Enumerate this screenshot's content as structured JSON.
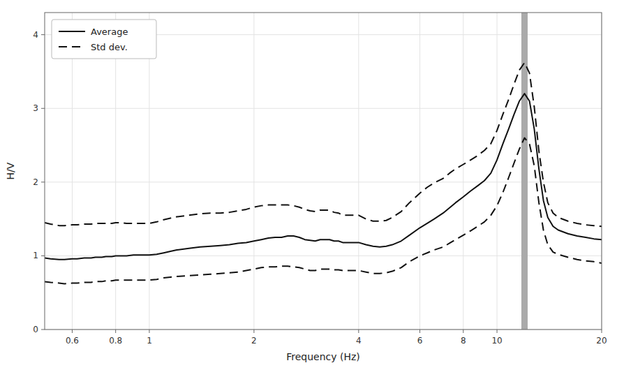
{
  "chart_data": {
    "type": "line",
    "xlabel": "Frequency (Hz)",
    "ylabel": "H/V",
    "log": "x",
    "xlim": [
      0.5,
      20
    ],
    "ylim": [
      0,
      4.3
    ],
    "xticks": [
      0.6,
      0.8,
      1,
      2,
      4,
      6,
      8,
      10,
      20
    ],
    "yticks": [
      0,
      1,
      2,
      3,
      4
    ],
    "grid": true,
    "legend": "upper left",
    "vlines": [
      {
        "x": 12.0,
        "color": "#aaaaaa"
      }
    ],
    "x": [
      0.5,
      0.52,
      0.55,
      0.57,
      0.6,
      0.62,
      0.65,
      0.68,
      0.7,
      0.73,
      0.75,
      0.78,
      0.8,
      0.83,
      0.86,
      0.9,
      0.93,
      0.96,
      1.0,
      1.05,
      1.1,
      1.15,
      1.2,
      1.3,
      1.4,
      1.5,
      1.6,
      1.7,
      1.8,
      1.9,
      2.0,
      2.1,
      2.2,
      2.3,
      2.4,
      2.5,
      2.6,
      2.7,
      2.8,
      2.9,
      3.0,
      3.1,
      3.2,
      3.3,
      3.4,
      3.5,
      3.6,
      3.7,
      3.8,
      3.9,
      4.0,
      4.2,
      4.4,
      4.6,
      4.8,
      5.0,
      5.3,
      5.6,
      6.0,
      6.3,
      6.6,
      7.0,
      7.3,
      7.6,
      8.0,
      8.4,
      8.8,
      9.2,
      9.6,
      10.0,
      10.4,
      10.8,
      11.2,
      11.6,
      12.0,
      12.4,
      12.8,
      13.2,
      13.6,
      14.0,
      14.5,
      15.0,
      16.0,
      17.0,
      18.0,
      19.0,
      20.0
    ],
    "series": [
      {
        "name": "Average",
        "color": "#111111",
        "line_style": "solid",
        "values": [
          0.97,
          0.96,
          0.95,
          0.95,
          0.96,
          0.96,
          0.97,
          0.97,
          0.98,
          0.98,
          0.99,
          0.99,
          1.0,
          1.0,
          1.0,
          1.01,
          1.01,
          1.01,
          1.01,
          1.02,
          1.04,
          1.06,
          1.08,
          1.1,
          1.12,
          1.13,
          1.14,
          1.15,
          1.17,
          1.18,
          1.2,
          1.22,
          1.24,
          1.25,
          1.25,
          1.27,
          1.27,
          1.25,
          1.22,
          1.21,
          1.2,
          1.22,
          1.22,
          1.22,
          1.2,
          1.2,
          1.18,
          1.18,
          1.18,
          1.18,
          1.18,
          1.15,
          1.13,
          1.12,
          1.13,
          1.15,
          1.2,
          1.28,
          1.38,
          1.44,
          1.5,
          1.58,
          1.65,
          1.72,
          1.8,
          1.88,
          1.95,
          2.02,
          2.12,
          2.3,
          2.52,
          2.72,
          2.92,
          3.1,
          3.2,
          3.1,
          2.72,
          2.18,
          1.75,
          1.52,
          1.4,
          1.35,
          1.3,
          1.27,
          1.25,
          1.23,
          1.22
        ]
      },
      {
        "name": "Std dev.",
        "color": "#111111",
        "line_style": "dashed",
        "values": [
          1.45,
          1.43,
          1.41,
          1.41,
          1.42,
          1.42,
          1.43,
          1.43,
          1.44,
          1.44,
          1.44,
          1.44,
          1.45,
          1.45,
          1.44,
          1.44,
          1.44,
          1.44,
          1.44,
          1.46,
          1.49,
          1.51,
          1.53,
          1.55,
          1.57,
          1.58,
          1.58,
          1.59,
          1.61,
          1.63,
          1.66,
          1.68,
          1.69,
          1.69,
          1.69,
          1.69,
          1.68,
          1.66,
          1.63,
          1.61,
          1.6,
          1.62,
          1.62,
          1.62,
          1.59,
          1.58,
          1.55,
          1.55,
          1.55,
          1.55,
          1.55,
          1.5,
          1.47,
          1.47,
          1.48,
          1.52,
          1.6,
          1.72,
          1.85,
          1.93,
          1.99,
          2.05,
          2.12,
          2.18,
          2.24,
          2.3,
          2.36,
          2.43,
          2.52,
          2.7,
          2.92,
          3.12,
          3.33,
          3.52,
          3.62,
          3.48,
          3.02,
          2.42,
          2.0,
          1.72,
          1.58,
          1.52,
          1.47,
          1.44,
          1.42,
          1.41,
          1.4
        ]
      },
      {
        "color": "#111111",
        "line_style": "dashed",
        "values": [
          0.65,
          0.64,
          0.63,
          0.62,
          0.63,
          0.63,
          0.64,
          0.64,
          0.65,
          0.65,
          0.66,
          0.66,
          0.67,
          0.67,
          0.67,
          0.67,
          0.67,
          0.67,
          0.67,
          0.68,
          0.7,
          0.71,
          0.72,
          0.73,
          0.74,
          0.75,
          0.76,
          0.77,
          0.78,
          0.8,
          0.82,
          0.84,
          0.85,
          0.85,
          0.86,
          0.86,
          0.85,
          0.84,
          0.82,
          0.8,
          0.8,
          0.82,
          0.82,
          0.82,
          0.81,
          0.81,
          0.8,
          0.8,
          0.8,
          0.8,
          0.8,
          0.78,
          0.76,
          0.76,
          0.77,
          0.79,
          0.84,
          0.92,
          1.0,
          1.04,
          1.08,
          1.12,
          1.17,
          1.22,
          1.28,
          1.34,
          1.4,
          1.46,
          1.55,
          1.68,
          1.86,
          2.06,
          2.26,
          2.45,
          2.6,
          2.52,
          2.22,
          1.72,
          1.35,
          1.15,
          1.05,
          1.02,
          0.98,
          0.95,
          0.93,
          0.92,
          0.9
        ]
      }
    ]
  }
}
